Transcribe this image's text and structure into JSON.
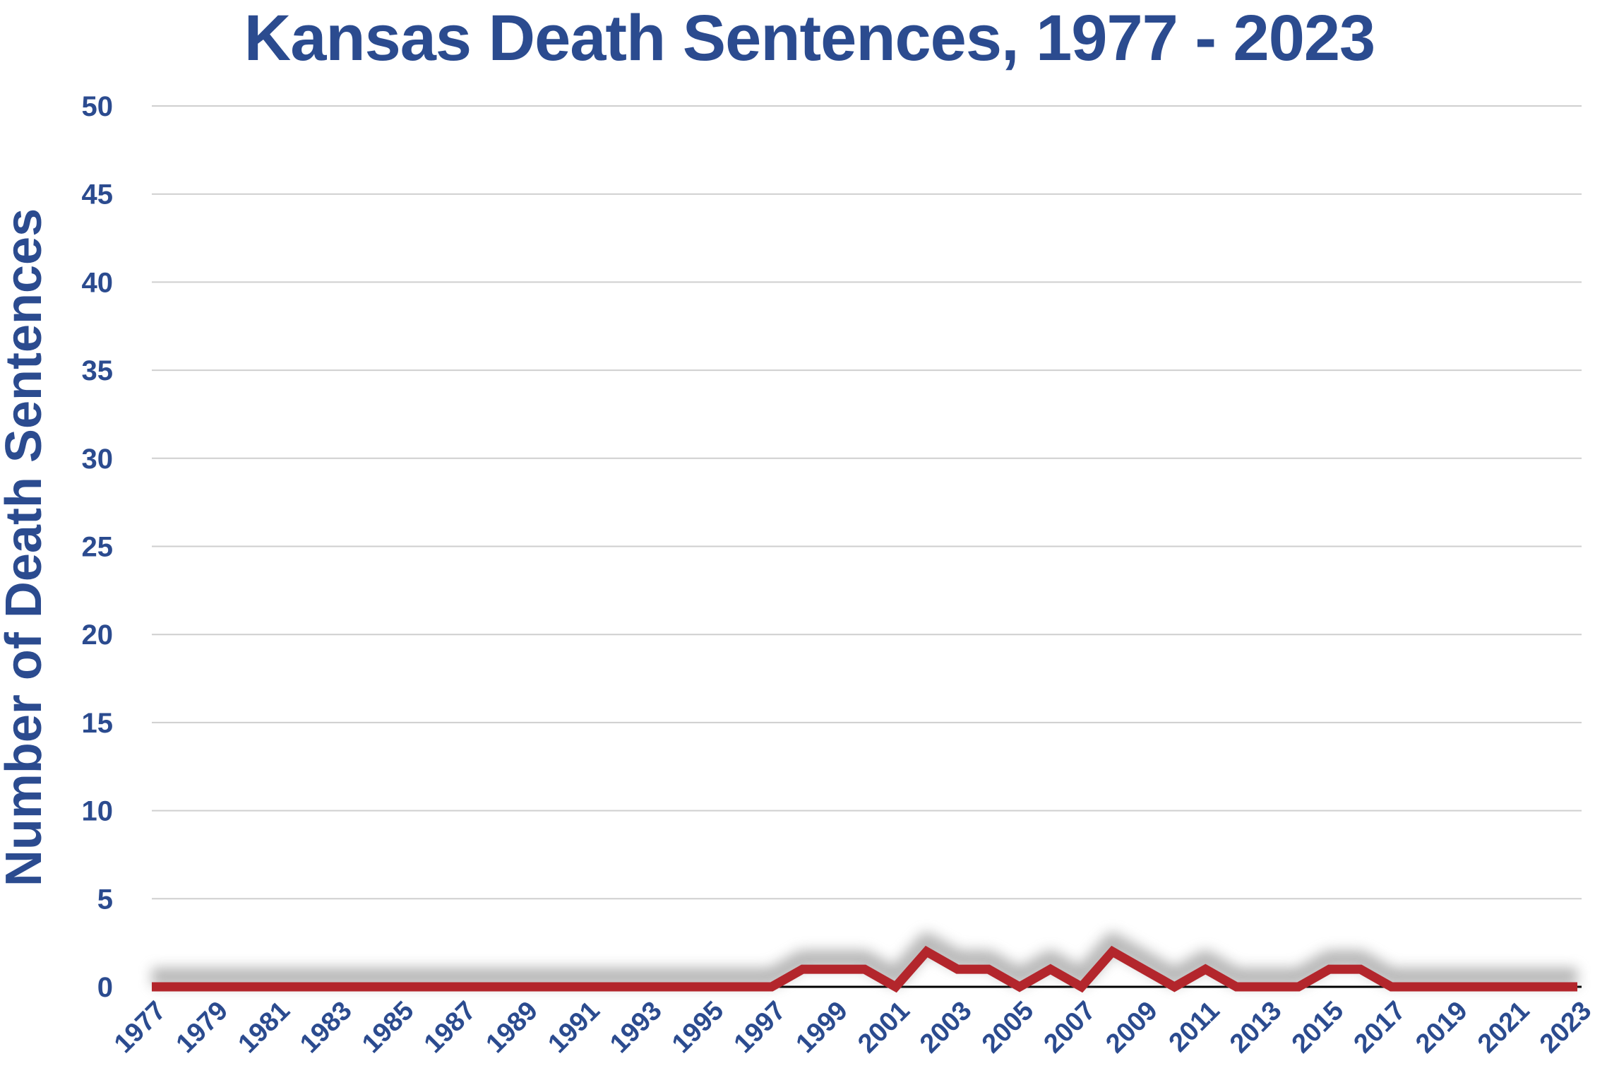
{
  "chart_data": {
    "type": "line",
    "title": "Kansas Death Sentences, 1977 - 2023",
    "xlabel": "",
    "ylabel": "Number of Death Sentences",
    "ylim": [
      0,
      50
    ],
    "yticks": [
      "0",
      "5",
      "10",
      "15",
      "20",
      "25",
      "30",
      "35",
      "40",
      "45",
      "50"
    ],
    "x": [
      1977,
      1978,
      1979,
      1980,
      1981,
      1982,
      1983,
      1984,
      1985,
      1986,
      1987,
      1988,
      1989,
      1990,
      1991,
      1992,
      1993,
      1994,
      1995,
      1996,
      1997,
      1998,
      1999,
      2000,
      2001,
      2002,
      2003,
      2004,
      2005,
      2006,
      2007,
      2008,
      2009,
      2010,
      2011,
      2012,
      2013,
      2014,
      2015,
      2016,
      2017,
      2018,
      2019,
      2020,
      2021,
      2022,
      2023
    ],
    "xticks": [
      "1977",
      "1979",
      "1981",
      "1983",
      "1985",
      "1987",
      "1989",
      "1991",
      "1993",
      "1995",
      "1997",
      "1999",
      "2001",
      "2003",
      "2005",
      "2007",
      "2009",
      "2011",
      "2013",
      "2015",
      "2017",
      "2019",
      "2021",
      "2023"
    ],
    "series": [
      {
        "name": "",
        "values": [
          0,
          0,
          0,
          0,
          0,
          0,
          0,
          0,
          0,
          0,
          0,
          0,
          0,
          0,
          0,
          0,
          0,
          0,
          0,
          0,
          0,
          1,
          1,
          1,
          0,
          2,
          1,
          1,
          0,
          1,
          0,
          2,
          1,
          0,
          1,
          0,
          0,
          0,
          1,
          1,
          0,
          0,
          0,
          0,
          0,
          0,
          0
        ]
      }
    ],
    "grid": true,
    "legend": "none",
    "colors": {
      "text": "#2b4b8f",
      "line": "#b3262c",
      "grid": "#cfcfcf",
      "shadow": "#7a7a7a",
      "axis": "#000000"
    }
  }
}
